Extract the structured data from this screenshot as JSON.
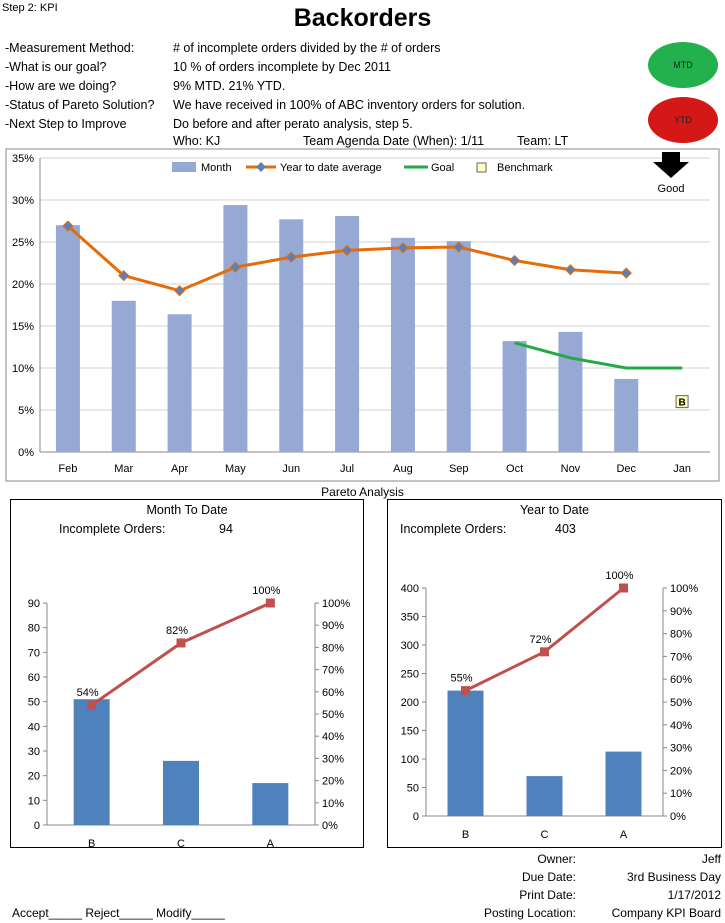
{
  "header": {
    "step": "Step 2: KPI",
    "title": "Backorders",
    "rows": [
      {
        "label": "-Measurement Method:",
        "value": "# of incomplete orders divided by the # of orders"
      },
      {
        "label": "-What is our goal?",
        "value": "10 % of orders incomplete by Dec 2011"
      },
      {
        "label": "-How are we doing?",
        "value": "9% MTD. 21% YTD."
      },
      {
        "label": "-Status of Pareto Solution?",
        "value": "We have received in 100% of ABC inventory orders for solution."
      },
      {
        "label": "-Next Step to Improve",
        "value": "Do before and after perato analysis, step 5."
      }
    ],
    "who": "Who: KJ",
    "agenda": "Team Agenda Date (When): 1/11",
    "team": "Team: LT",
    "badges": {
      "mtd": "MTD",
      "ytd": "YTD"
    },
    "colors": {
      "mtd": "#22b14c",
      "ytd": "#d41818"
    }
  },
  "pareto_title": "Pareto Analysis",
  "mtd_panel": {
    "title": "Month To Date",
    "label": "Incomplete Orders:",
    "count": "94"
  },
  "ytd_panel": {
    "title": "Year to Date",
    "label": "Incomplete Orders:",
    "count": "403"
  },
  "footer": {
    "owner_label": "Owner:",
    "owner": "Jeff",
    "due_label": "Due Date:",
    "due": "3rd Business Day",
    "print_label": "Print Date:",
    "print": "1/17/2012",
    "posting_label": "Posting Location:",
    "posting": "Company KPI Board",
    "accept": "Accept_____ Reject_____ Modify_____"
  },
  "chart_data": [
    {
      "type": "bar",
      "categories": [
        "Feb",
        "Mar",
        "Apr",
        "May",
        "Jun",
        "Jul",
        "Aug",
        "Sep",
        "Oct",
        "Nov",
        "Dec",
        "Jan"
      ],
      "ylim": [
        0,
        35
      ],
      "yticks": [
        "0%",
        "5%",
        "10%",
        "15%",
        "20%",
        "25%",
        "30%",
        "35%"
      ],
      "legend": [
        "Month",
        "Year to date average",
        "Goal",
        "Benchmark"
      ],
      "good_label": "Good",
      "benchmark_marker": "B",
      "series": [
        {
          "name": "Month",
          "kind": "bar",
          "color": "#95a9d4",
          "values": [
            27,
            18,
            16.4,
            29.4,
            27.7,
            28.1,
            25.5,
            25.1,
            13.2,
            14.3,
            8.7,
            null
          ]
        },
        {
          "name": "Year to date average",
          "kind": "line",
          "color": "#e46c0a",
          "marker_color": "#5b7fb8",
          "values": [
            26.9,
            21,
            19.2,
            22,
            23.2,
            24,
            24.3,
            24.4,
            22.8,
            21.7,
            21.3,
            null
          ]
        },
        {
          "name": "Goal",
          "kind": "line",
          "color": "#22aa44",
          "values": [
            null,
            null,
            null,
            null,
            null,
            null,
            null,
            null,
            13,
            11.2,
            10,
            10
          ]
        },
        {
          "name": "Benchmark",
          "kind": "marker",
          "values": [
            null,
            null,
            null,
            null,
            null,
            null,
            null,
            null,
            null,
            null,
            null,
            6
          ]
        }
      ]
    },
    {
      "type": "bar",
      "categories": [
        "B",
        "C",
        "A"
      ],
      "values": [
        51,
        26,
        17
      ],
      "ylim": [
        0,
        90
      ],
      "yticks": [
        "0",
        "10",
        "20",
        "30",
        "40",
        "50",
        "60",
        "70",
        "80",
        "90"
      ],
      "y2ticks": [
        "0%",
        "10%",
        "20%",
        "30%",
        "40%",
        "50%",
        "60%",
        "70%",
        "80%",
        "90%",
        "100%"
      ],
      "cumulative": [
        54,
        82,
        100
      ],
      "cum_labels": [
        "54%",
        "82%",
        "100%"
      ],
      "bar_color": "#4f81bd",
      "line_color": "#c0504d"
    },
    {
      "type": "bar",
      "categories": [
        "B",
        "C",
        "A"
      ],
      "values": [
        220,
        70,
        113
      ],
      "ylim": [
        0,
        400
      ],
      "yticks": [
        "0",
        "50",
        "100",
        "150",
        "200",
        "250",
        "300",
        "350",
        "400"
      ],
      "y2ticks": [
        "0%",
        "10%",
        "20%",
        "30%",
        "40%",
        "50%",
        "60%",
        "70%",
        "80%",
        "90%",
        "100%"
      ],
      "cumulative": [
        55,
        72,
        100
      ],
      "cum_labels": [
        "55%",
        "72%",
        "100%"
      ],
      "bar_color": "#4f81bd",
      "line_color": "#c0504d"
    }
  ]
}
